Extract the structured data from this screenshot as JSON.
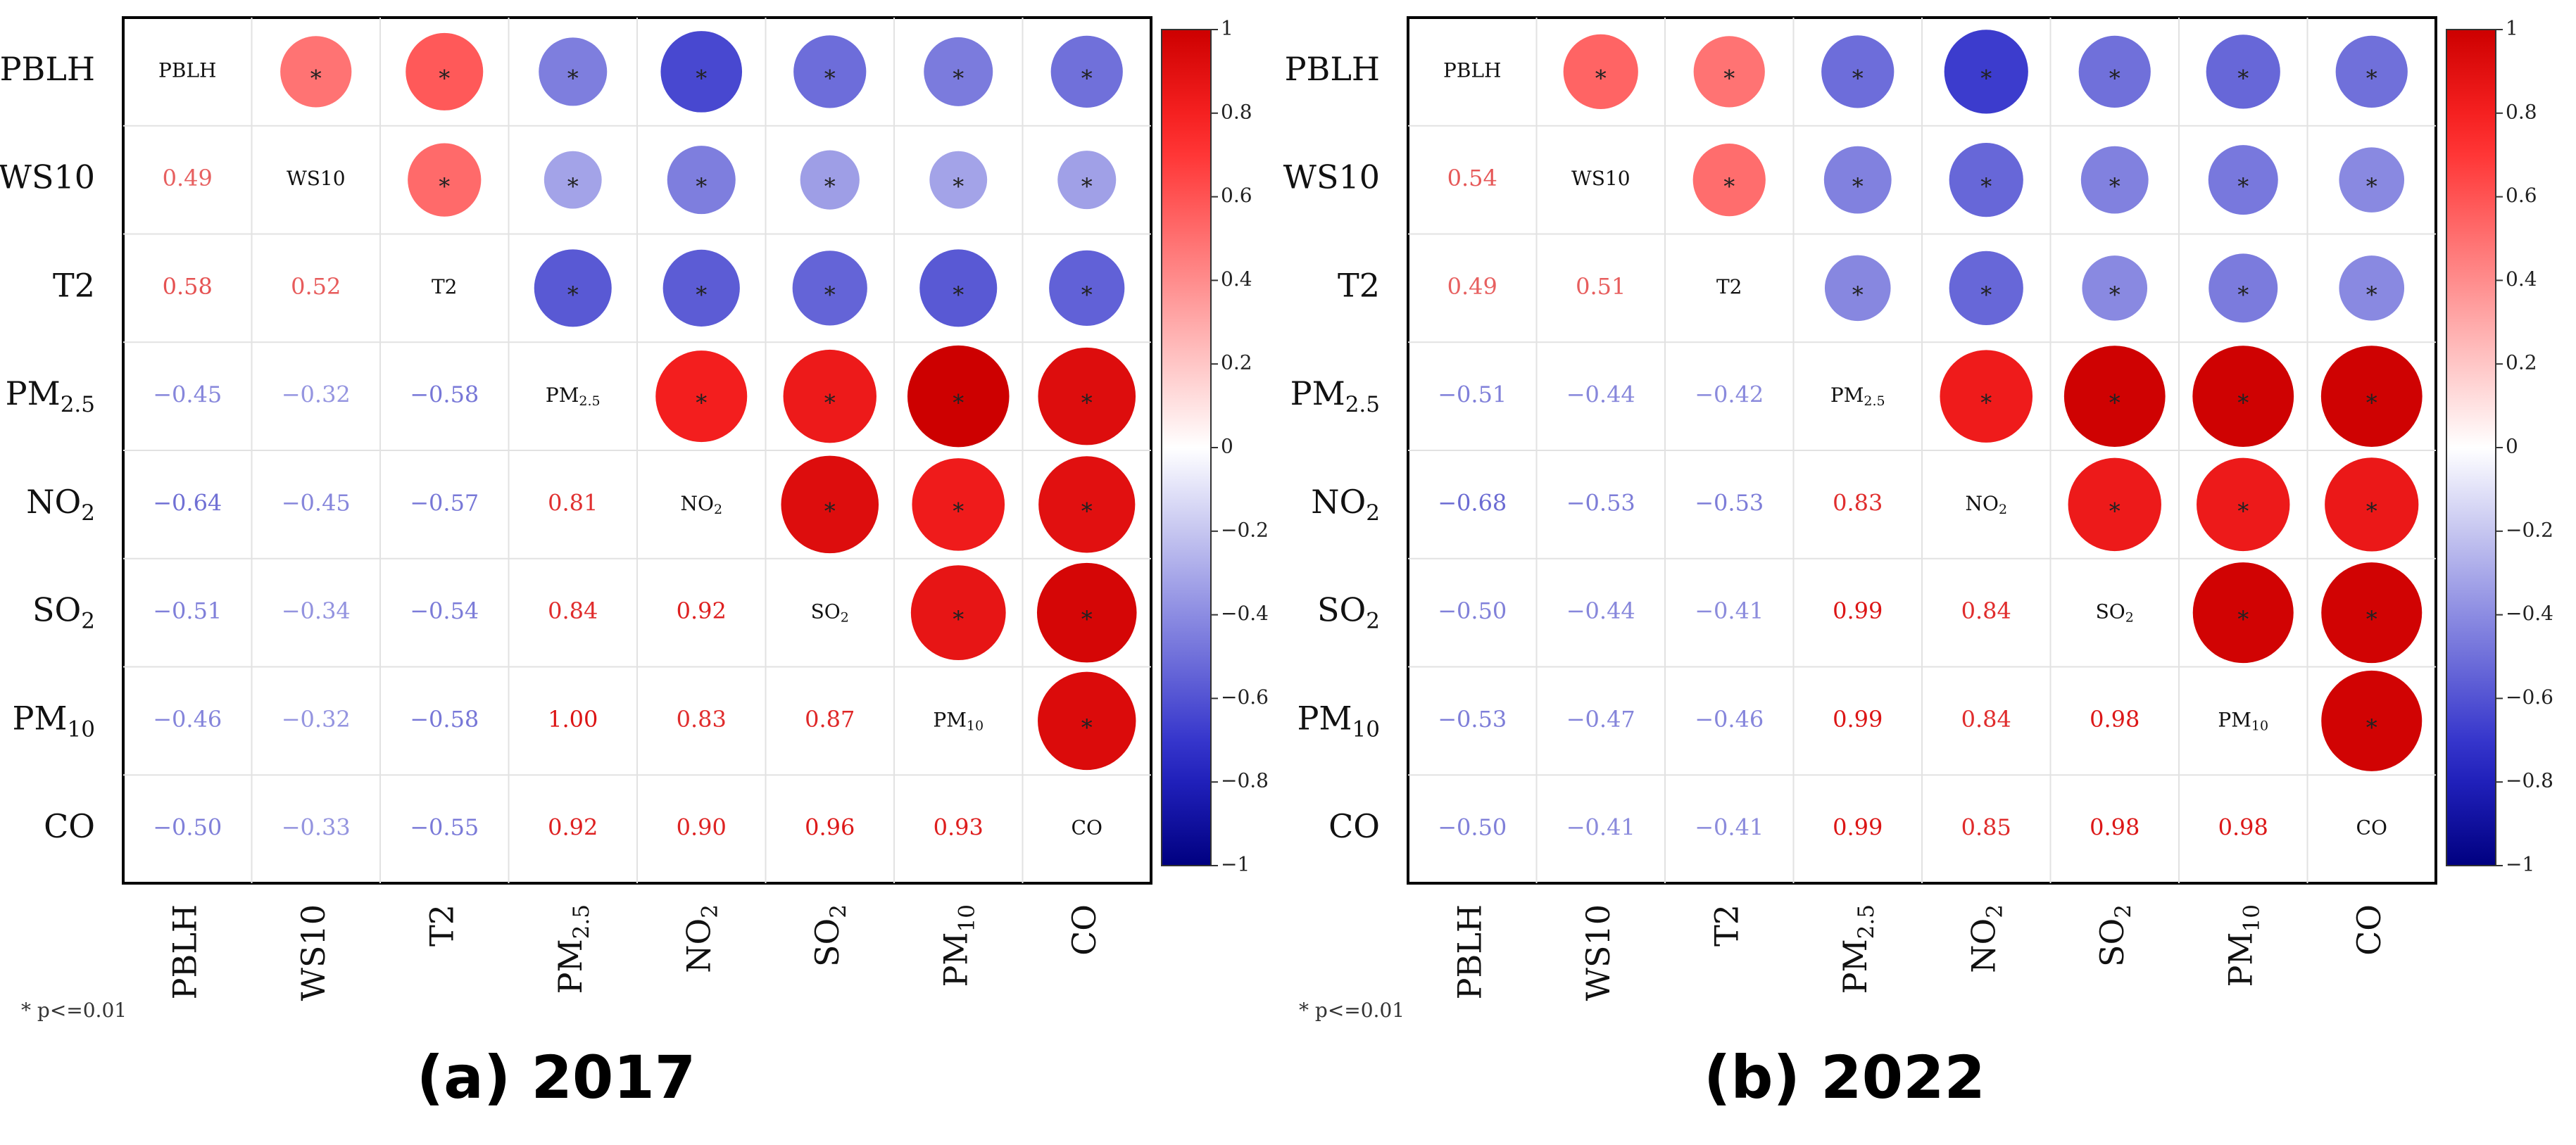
{
  "chart_data": [
    {
      "type": "heatmap",
      "caption": "(a) 2017",
      "variables": [
        "PBLH",
        "WS10",
        "T2",
        "PM2.5",
        "NO2",
        "SO2",
        "PM10",
        "CO"
      ],
      "matrix": [
        [
          1.0,
          0.49,
          0.58,
          -0.45,
          -0.64,
          -0.51,
          -0.46,
          -0.5
        ],
        [
          0.49,
          1.0,
          0.52,
          -0.32,
          -0.45,
          -0.34,
          -0.32,
          -0.33
        ],
        [
          0.58,
          0.52,
          1.0,
          -0.58,
          -0.57,
          -0.54,
          -0.58,
          -0.55
        ],
        [
          -0.45,
          -0.32,
          -0.58,
          1.0,
          0.81,
          0.84,
          1.0,
          0.92
        ],
        [
          -0.64,
          -0.45,
          -0.57,
          0.81,
          1.0,
          0.92,
          0.83,
          0.9
        ],
        [
          -0.51,
          -0.34,
          -0.54,
          0.84,
          0.92,
          1.0,
          0.87,
          0.96
        ],
        [
          -0.46,
          -0.32,
          -0.58,
          1.0,
          0.83,
          0.87,
          1.0,
          0.93
        ],
        [
          -0.5,
          -0.33,
          -0.55,
          0.92,
          0.9,
          0.96,
          0.93,
          1.0
        ]
      ],
      "significance_marker": "*",
      "colorbar": {
        "ticks": [
          "1",
          "0.8",
          "0.6",
          "0.4",
          "0.2",
          "0",
          "-0.2",
          "-0.4",
          "-0.6",
          "-0.8",
          "-1"
        ]
      },
      "footnote": "* p<=0.01"
    },
    {
      "type": "heatmap",
      "caption": "(b) 2022",
      "variables": [
        "PBLH",
        "WS10",
        "T2",
        "PM2.5",
        "NO2",
        "SO2",
        "PM10",
        "CO"
      ],
      "matrix": [
        [
          1.0,
          0.54,
          0.49,
          -0.51,
          -0.68,
          -0.5,
          -0.53,
          -0.5
        ],
        [
          0.54,
          1.0,
          0.51,
          -0.44,
          -0.53,
          -0.44,
          -0.47,
          -0.41
        ],
        [
          0.49,
          0.51,
          1.0,
          -0.42,
          -0.53,
          -0.41,
          -0.46,
          -0.41
        ],
        [
          -0.51,
          -0.44,
          -0.42,
          1.0,
          0.83,
          0.99,
          0.99,
          0.99
        ],
        [
          -0.68,
          -0.53,
          -0.53,
          0.83,
          1.0,
          0.84,
          0.84,
          0.85
        ],
        [
          -0.5,
          -0.44,
          -0.41,
          0.99,
          0.84,
          1.0,
          0.98,
          0.98
        ],
        [
          -0.53,
          -0.47,
          -0.46,
          0.99,
          0.84,
          0.98,
          1.0,
          0.98
        ],
        [
          -0.5,
          -0.41,
          -0.41,
          0.99,
          0.85,
          0.98,
          0.98,
          1.0
        ]
      ],
      "significance_marker": "*",
      "colorbar": {
        "ticks": [
          "1",
          "0.8",
          "0.6",
          "0.4",
          "0.2",
          "0",
          "-0.2",
          "-0.4",
          "-0.6",
          "-0.8",
          "-1"
        ]
      },
      "footnote": "* p<=0.01"
    }
  ]
}
